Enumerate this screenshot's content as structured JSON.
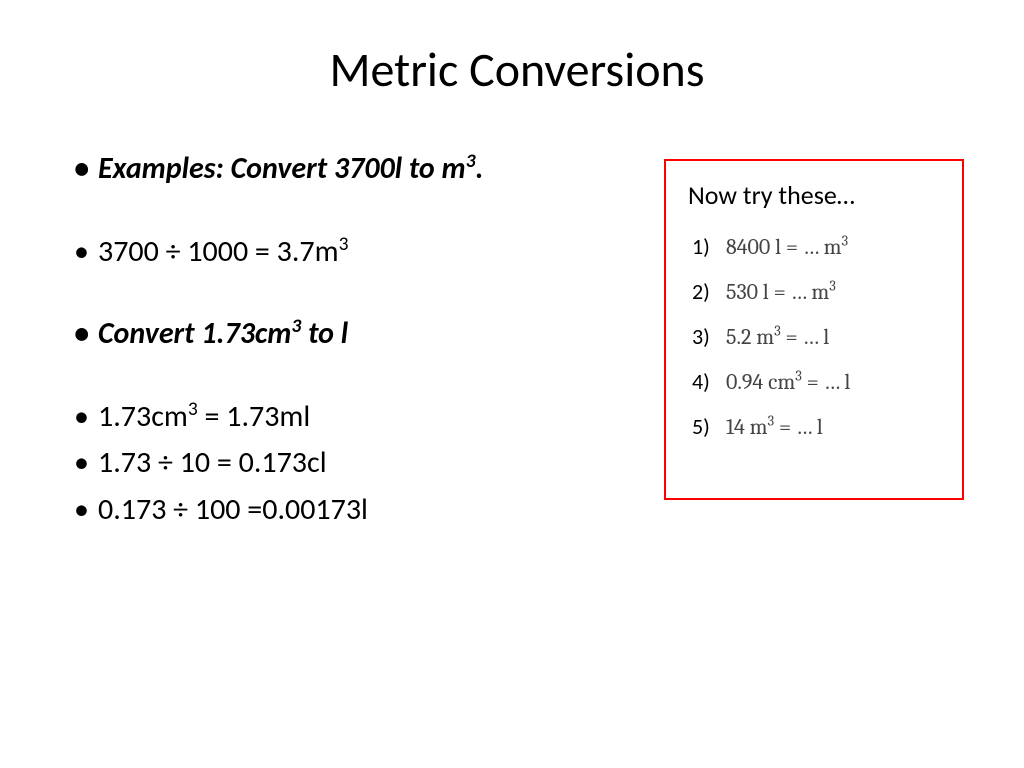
{
  "colors": {
    "background": "#ffffff",
    "text": "#000000",
    "box_border": "#ff0000",
    "eq_text": "#444444"
  },
  "typography": {
    "title_fontsize": 48,
    "bullet_fontsize": 30,
    "trybox_title_fontsize": 26,
    "trybox_item_fontsize": 22,
    "body_font": "Calibri",
    "eq_font": "Cambria Math"
  },
  "title": "Metric Conversions",
  "bullets": {
    "b1_prefix": "Examples: Convert 3700l to m",
    "b1_sup": "3",
    "b1_suffix": ".",
    "b2_prefix": "3700 ÷ 1000 = 3.7m",
    "b2_sup": "3",
    "b3_prefix": "Convert 1.73cm",
    "b3_sup": "3",
    "b3_suffix": " to l",
    "b4_prefix": "1.73cm",
    "b4_sup": "3",
    "b4_suffix": " = 1.73ml",
    "b5": "1.73 ÷ 10 = 0.173cl",
    "b6": "0.173 ÷ 100 =0.00173l"
  },
  "trybox": {
    "title": "Now try these…",
    "items": [
      {
        "num": "1)",
        "lhs": "8400 l = … m",
        "sup": "3"
      },
      {
        "num": "2)",
        "lhs": "530 l = … m",
        "sup": "3"
      },
      {
        "num": "3)",
        "lhs": "5.2 m",
        "sup": "3",
        "rhs": " = … l"
      },
      {
        "num": "4)",
        "lhs": "0.94 cm",
        "sup": "3",
        "rhs": " = … l"
      },
      {
        "num": "5)",
        "lhs": "14 m",
        "sup": "3",
        "rhs": " = … l"
      }
    ]
  }
}
